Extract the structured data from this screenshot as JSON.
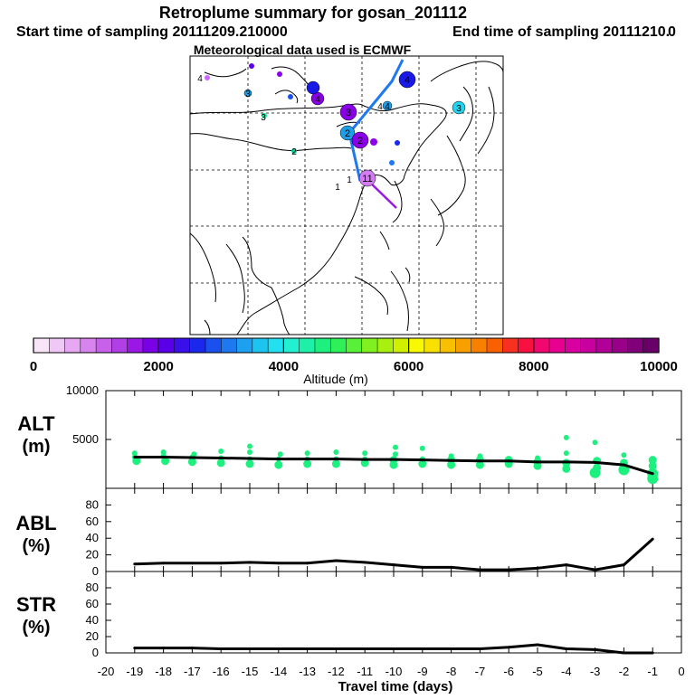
{
  "header": {
    "title": "Retroplume summary for gosan_201112",
    "start_label": "Start time of sampling 20111209.210000",
    "end_label": "End time of sampling 20111210.",
    "end_extra": "0",
    "met_label": "Meteorological data used is ECMWF"
  },
  "map": {
    "numbered_markers": [
      {
        "label": "4",
        "color": "#1a1ae6"
      },
      {
        "label": "3",
        "color": "#8a00e6"
      },
      {
        "label": "2",
        "color": "#1e9ee6"
      },
      {
        "label": "2",
        "color": "#8a00e6"
      },
      {
        "label": "11",
        "color": "#d37bf0"
      },
      {
        "label": "4",
        "color": "#8a00e6"
      },
      {
        "label": "4",
        "color": "#1a1ae6"
      },
      {
        "label": "4",
        "color": "#1e9ee6"
      },
      {
        "label": "3",
        "color": "#22d4f0"
      },
      {
        "label": "3",
        "color": "#1e9ee6"
      },
      {
        "label": "3",
        "color": "#00f0a0"
      },
      {
        "label": "2",
        "color": "#00d0a0"
      },
      {
        "label": "4",
        "color": "#cc66ff"
      },
      {
        "label": "1",
        "color": "#1e9ee6"
      },
      {
        "label": "1",
        "color": "#1e9ee6"
      }
    ]
  },
  "colorbar": {
    "tick_labels": [
      "0",
      "2000",
      "4000",
      "6000",
      "8000",
      "10000"
    ],
    "title": "Altitude (m)",
    "colors": [
      "#f8e6f8",
      "#f0c8f6",
      "#e6a8f2",
      "#d884ee",
      "#c860ea",
      "#b040e6",
      "#9a18e6",
      "#7a00e6",
      "#5a00e8",
      "#3a10ea",
      "#1a28ec",
      "#1a50ee",
      "#1e78f0",
      "#1ea0f0",
      "#1ec4f0",
      "#22e0f0",
      "#22f0d0",
      "#1ef0a8",
      "#1ef080",
      "#30f058",
      "#58f038",
      "#80f020",
      "#a8f010",
      "#d0f000",
      "#f8f800",
      "#f8e000",
      "#f8c000",
      "#f8a000",
      "#f88000",
      "#f86000",
      "#f83020",
      "#f81040",
      "#f00870",
      "#e80090",
      "#d800a0",
      "#c800a0",
      "#b00098",
      "#98008a",
      "#80007a",
      "#680068"
    ]
  },
  "chart_data": [
    {
      "type": "line",
      "name": "ALT",
      "ylabel": "ALT (m)",
      "ylabel_line1": "ALT",
      "ylabel_line2": "(m)",
      "ylim": [
        0,
        10000
      ],
      "yticks": [
        0,
        5000,
        10000
      ],
      "ytick_labels": [
        "",
        "5000",
        "10000"
      ],
      "x": [
        -19,
        -18,
        -17,
        -16,
        -15,
        -14,
        -13,
        -12,
        -11,
        -10,
        -9,
        -8,
        -7,
        -6,
        -5,
        -4,
        -3,
        -2,
        -1
      ],
      "series": [
        {
          "name": "mean altitude",
          "values": [
            3200,
            3200,
            3150,
            3100,
            3050,
            3000,
            3000,
            3000,
            2950,
            2950,
            2900,
            2850,
            2800,
            2800,
            2700,
            2700,
            2650,
            2400,
            1500
          ]
        }
      ],
      "scatter_color": "#1ef080",
      "scatter": [
        [
          -19,
          2800
        ],
        [
          -19,
          3200
        ],
        [
          -19,
          3600
        ],
        [
          -18,
          2800
        ],
        [
          -18,
          3300
        ],
        [
          -18,
          3700
        ],
        [
          -17,
          2700
        ],
        [
          -17,
          3200
        ],
        [
          -17,
          3500
        ],
        [
          -16,
          2600
        ],
        [
          -16,
          3100
        ],
        [
          -16,
          3800
        ],
        [
          -15,
          2500
        ],
        [
          -15,
          3000
        ],
        [
          -15,
          3700
        ],
        [
          -15,
          4300
        ],
        [
          -14,
          2400
        ],
        [
          -14,
          3000
        ],
        [
          -14,
          3500
        ],
        [
          -13,
          2500
        ],
        [
          -13,
          3000
        ],
        [
          -13,
          3600
        ],
        [
          -12,
          2500
        ],
        [
          -12,
          3000
        ],
        [
          -12,
          3700
        ],
        [
          -11,
          2600
        ],
        [
          -11,
          3000
        ],
        [
          -11,
          3600
        ],
        [
          -10,
          2400
        ],
        [
          -10,
          2900
        ],
        [
          -10,
          3500
        ],
        [
          -10,
          4200
        ],
        [
          -9,
          2500
        ],
        [
          -9,
          3000
        ],
        [
          -9,
          4100
        ],
        [
          -8,
          2400
        ],
        [
          -8,
          2900
        ],
        [
          -8,
          3300
        ],
        [
          -7,
          2400
        ],
        [
          -7,
          2900
        ],
        [
          -7,
          3300
        ],
        [
          -6,
          2500
        ],
        [
          -6,
          2900
        ],
        [
          -5,
          2300
        ],
        [
          -5,
          2700
        ],
        [
          -5,
          3100
        ],
        [
          -4,
          2000
        ],
        [
          -4,
          2600
        ],
        [
          -4,
          3600
        ],
        [
          -4,
          5200
        ],
        [
          -3,
          1600
        ],
        [
          -3,
          2100
        ],
        [
          -3,
          2800
        ],
        [
          -3,
          4700
        ],
        [
          -2,
          1900
        ],
        [
          -2,
          2600
        ],
        [
          -2,
          3400
        ],
        [
          -1,
          1000
        ],
        [
          -1,
          1500
        ],
        [
          -1,
          2300
        ],
        [
          -1,
          2900
        ]
      ]
    },
    {
      "type": "line",
      "name": "ABL",
      "ylabel": "ABL (%)",
      "ylabel_line1": "ABL",
      "ylabel_line2": "(%)",
      "ylim": [
        0,
        100
      ],
      "yticks": [
        0,
        20,
        40,
        60,
        80
      ],
      "ytick_labels": [
        "0",
        "20",
        "40",
        "60",
        "80"
      ],
      "x": [
        -19,
        -18,
        -17,
        -16,
        -15,
        -14,
        -13,
        -12,
        -11,
        -10,
        -9,
        -8,
        -7,
        -6,
        -5,
        -4,
        -3,
        -2,
        -1
      ],
      "series": [
        {
          "name": "ABL fraction",
          "values": [
            9,
            10,
            10,
            10,
            11,
            10,
            10,
            13,
            11,
            8,
            5,
            5,
            2,
            2,
            4,
            8,
            2,
            8,
            39
          ]
        }
      ]
    },
    {
      "type": "line",
      "name": "STR",
      "ylabel": "STR (%)",
      "ylabel_line1": "STR",
      "ylabel_line2": "(%)",
      "ylim": [
        0,
        100
      ],
      "yticks": [
        0,
        20,
        40,
        60,
        80
      ],
      "ytick_labels": [
        "0",
        "20",
        "40",
        "60",
        "80"
      ],
      "x": [
        -19,
        -18,
        -17,
        -16,
        -15,
        -14,
        -13,
        -12,
        -11,
        -10,
        -9,
        -8,
        -7,
        -6,
        -5,
        -4,
        -3,
        -2,
        -1
      ],
      "series": [
        {
          "name": "STR fraction",
          "values": [
            6,
            6,
            6,
            5,
            5,
            5,
            5,
            5,
            5,
            5,
            5,
            5,
            5,
            7,
            10,
            5,
            4,
            0,
            0
          ]
        }
      ]
    }
  ],
  "xaxis": {
    "xlim": [
      -20,
      0
    ],
    "ticks": [
      -20,
      -19,
      -18,
      -17,
      -16,
      -15,
      -14,
      -13,
      -12,
      -11,
      -10,
      -9,
      -8,
      -7,
      -6,
      -5,
      -4,
      -3,
      -2,
      -1,
      0
    ],
    "tick_labels": [
      "-20",
      "-19",
      "-18",
      "-17",
      "-16",
      "-15",
      "-14",
      "-13",
      "-12",
      "-11",
      "-10",
      "-9",
      "-8",
      "-7",
      "-6",
      "-5",
      "-4",
      "-3",
      "-2",
      "-1",
      "0"
    ],
    "label": "Travel time (days)"
  }
}
